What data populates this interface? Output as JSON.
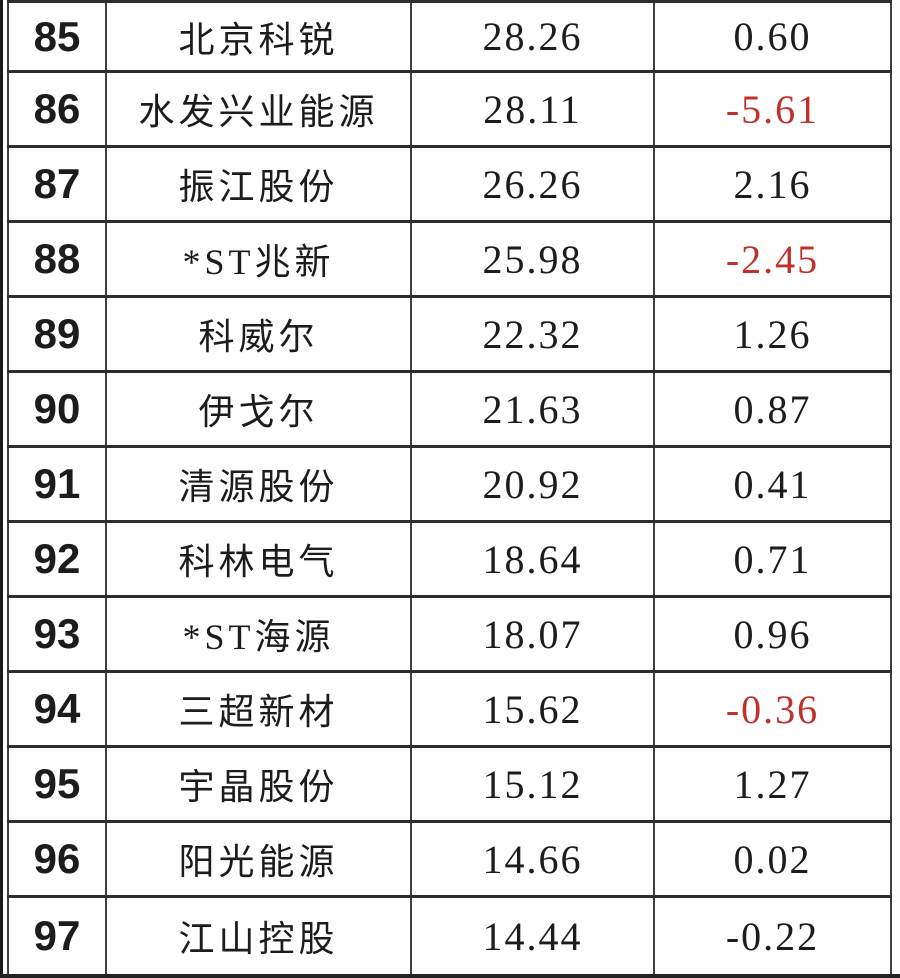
{
  "colors": {
    "negative_value_red": "#c0312b",
    "text_black": "#1c1c1c",
    "grid_line": "#2d2d2d",
    "background": "#fefefe"
  },
  "table": {
    "headers_visible": false,
    "rows": [
      {
        "rank": "85",
        "name": "北京科锐",
        "value1": "28.26",
        "value2": "0.60",
        "value2_color": "black"
      },
      {
        "rank": "86",
        "name": "水发兴业能源",
        "value1": "28.11",
        "value2": "-5.61",
        "value2_color": "red"
      },
      {
        "rank": "87",
        "name": "振江股份",
        "value1": "26.26",
        "value2": "2.16",
        "value2_color": "black"
      },
      {
        "rank": "88",
        "name": "*ST兆新",
        "value1": "25.98",
        "value2": "-2.45",
        "value2_color": "red"
      },
      {
        "rank": "89",
        "name": "科威尔",
        "value1": "22.32",
        "value2": "1.26",
        "value2_color": "black"
      },
      {
        "rank": "90",
        "name": "伊戈尔",
        "value1": "21.63",
        "value2": "0.87",
        "value2_color": "black"
      },
      {
        "rank": "91",
        "name": "清源股份",
        "value1": "20.92",
        "value2": "0.41",
        "value2_color": "black"
      },
      {
        "rank": "92",
        "name": "科林电气",
        "value1": "18.64",
        "value2": "0.71",
        "value2_color": "black"
      },
      {
        "rank": "93",
        "name": "*ST海源",
        "value1": "18.07",
        "value2": "0.96",
        "value2_color": "black"
      },
      {
        "rank": "94",
        "name": "三超新材",
        "value1": "15.62",
        "value2": "-0.36",
        "value2_color": "red"
      },
      {
        "rank": "95",
        "name": "宇晶股份",
        "value1": "15.12",
        "value2": "1.27",
        "value2_color": "black"
      },
      {
        "rank": "96",
        "name": "阳光能源",
        "value1": "14.66",
        "value2": "0.02",
        "value2_color": "black"
      },
      {
        "rank": "97",
        "name": "江山控股",
        "value1": "14.44",
        "value2": "-0.22",
        "value2_color": "black"
      }
    ]
  },
  "chart_data": {
    "type": "table",
    "title": "",
    "columns": [
      "rank",
      "company_name",
      "value1",
      "value2"
    ],
    "rows": [
      [
        85,
        "北京科锐",
        28.26,
        0.6
      ],
      [
        86,
        "水发兴业能源",
        28.11,
        -5.61
      ],
      [
        87,
        "振江股份",
        26.26,
        2.16
      ],
      [
        88,
        "*ST兆新",
        25.98,
        -2.45
      ],
      [
        89,
        "科威尔",
        22.32,
        1.26
      ],
      [
        90,
        "伊戈尔",
        21.63,
        0.87
      ],
      [
        91,
        "清源股份",
        20.92,
        0.41
      ],
      [
        92,
        "科林电气",
        18.64,
        0.71
      ],
      [
        93,
        "*ST海源",
        18.07,
        0.96
      ],
      [
        94,
        "三超新材",
        15.62,
        -0.36
      ],
      [
        95,
        "宇晶股份",
        15.12,
        1.27
      ],
      [
        96,
        "阳光能源",
        14.66,
        0.02
      ],
      [
        97,
        "江山控股",
        14.44,
        -0.22
      ]
    ],
    "notes": "Cropped spreadsheet screenshot; column headers not visible. Negative value2 entries rendered in red except row 97 (-0.22) which is black."
  }
}
